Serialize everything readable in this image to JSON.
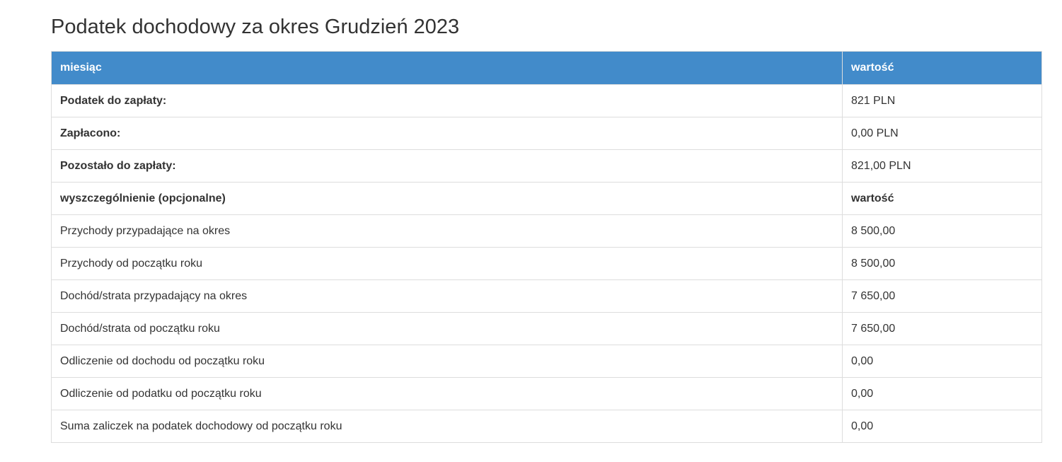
{
  "page_title": "Podatek dochodowy za okres Grudzień 2023",
  "table": {
    "header": {
      "col1": "miesiąc",
      "col2": "wartość"
    },
    "rows": [
      {
        "label": "Podatek do zapłaty:",
        "value": "821 PLN",
        "label_bold": true,
        "value_bold": false
      },
      {
        "label": "Zapłacono:",
        "value": "0,00 PLN",
        "label_bold": true,
        "value_bold": false
      },
      {
        "label": "Pozostało do zapłaty:",
        "value": "821,00 PLN",
        "label_bold": true,
        "value_bold": false
      },
      {
        "label": "wyszczególnienie (opcjonalne)",
        "value": "wartość",
        "label_bold": true,
        "value_bold": true
      },
      {
        "label": "Przychody przypadające na okres",
        "value": "8 500,00",
        "label_bold": false,
        "value_bold": false
      },
      {
        "label": "Przychody od początku roku",
        "value": "8 500,00",
        "label_bold": false,
        "value_bold": false
      },
      {
        "label": "Dochód/strata przypadający na okres",
        "value": "7 650,00",
        "label_bold": false,
        "value_bold": false
      },
      {
        "label": "Dochód/strata od początku roku",
        "value": "7 650,00",
        "label_bold": false,
        "value_bold": false
      },
      {
        "label": "Odliczenie od dochodu od początku roku",
        "value": "0,00",
        "label_bold": false,
        "value_bold": false
      },
      {
        "label": "Odliczenie od podatku od początku roku",
        "value": "0,00",
        "label_bold": false,
        "value_bold": false
      },
      {
        "label": "Suma zaliczek na podatek dochodowy od początku roku",
        "value": "0,00",
        "label_bold": false,
        "value_bold": false
      }
    ]
  },
  "colors": {
    "header_bg": "#428bca",
    "header_text": "#ffffff",
    "border": "#dddddd",
    "text": "#333333",
    "page_bg": "#ffffff"
  }
}
